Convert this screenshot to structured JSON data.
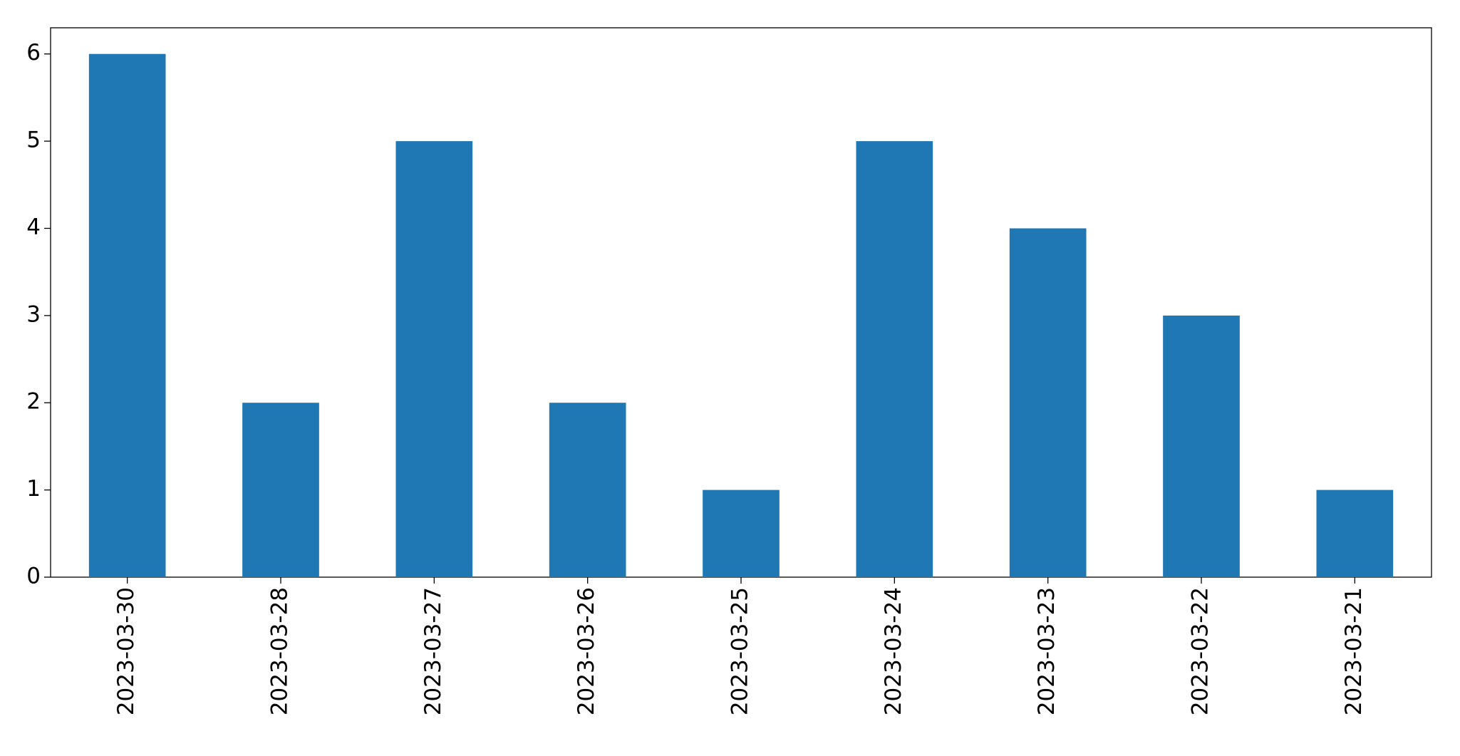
{
  "chart_data": {
    "type": "bar",
    "categories": [
      "2023-03-30",
      "2023-03-28",
      "2023-03-27",
      "2023-03-26",
      "2023-03-25",
      "2023-03-24",
      "2023-03-23",
      "2023-03-22",
      "2023-03-21"
    ],
    "values": [
      6,
      2,
      5,
      2,
      1,
      5,
      4,
      3,
      1
    ],
    "color": "#1f77b4",
    "ylim": [
      0,
      6.3
    ],
    "yticks": [
      0,
      1,
      2,
      3,
      4,
      5,
      6
    ],
    "grid": false
  }
}
